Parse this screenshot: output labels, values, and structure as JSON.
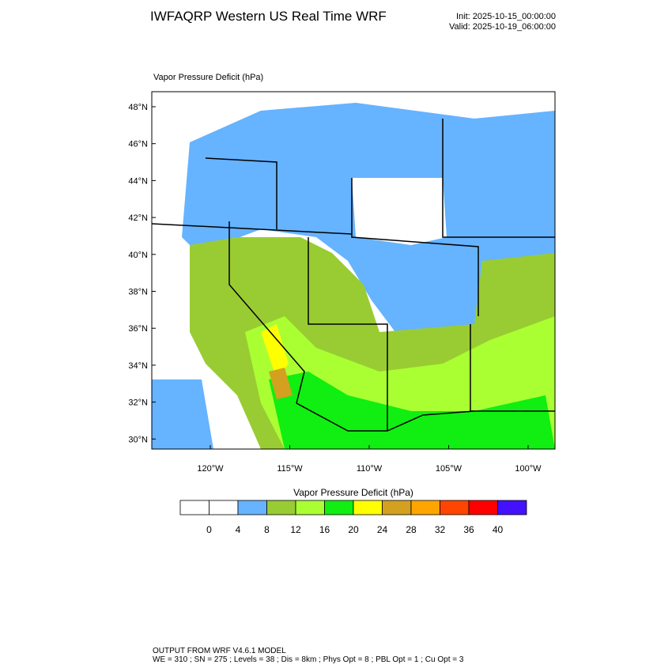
{
  "header": {
    "title": "IWFAQRP Western US Real Time WRF",
    "init": "Init: 2025-10-15_00:00:00",
    "valid": "Valid: 2025-10-19_06:00:00"
  },
  "map": {
    "title": "Vapor Pressure Deficit   (hPa)",
    "lat_labels": [
      "48°N",
      "46°N",
      "44°N",
      "42°N",
      "40°N",
      "38°N",
      "36°N",
      "34°N",
      "32°N",
      "30°N"
    ],
    "lon_labels": [
      "120°W",
      "115°W",
      "110°W",
      "105°W",
      "100°W"
    ]
  },
  "colorbar": {
    "title": "Vapor Pressure Deficit  (hPa)",
    "colors": [
      "#ffffff",
      "#ffffff",
      "#66b3ff",
      "#99cc33",
      "#aaff33",
      "#11ee11",
      "#ffff00",
      "#d4a020",
      "#ffa500",
      "#ff4500",
      "#ff0000",
      "#4411ff"
    ],
    "labels": [
      "0",
      "4",
      "8",
      "12",
      "16",
      "20",
      "24",
      "28",
      "32",
      "36",
      "40"
    ]
  },
  "footer": {
    "line1": "OUTPUT FROM WRF V4.6.1 MODEL",
    "line2": "WE = 310 ; SN = 275 ; Levels = 38 ; Dis = 8km ; Phys Opt = 8 ; PBL Opt = 1 ; Cu Opt = 3"
  }
}
